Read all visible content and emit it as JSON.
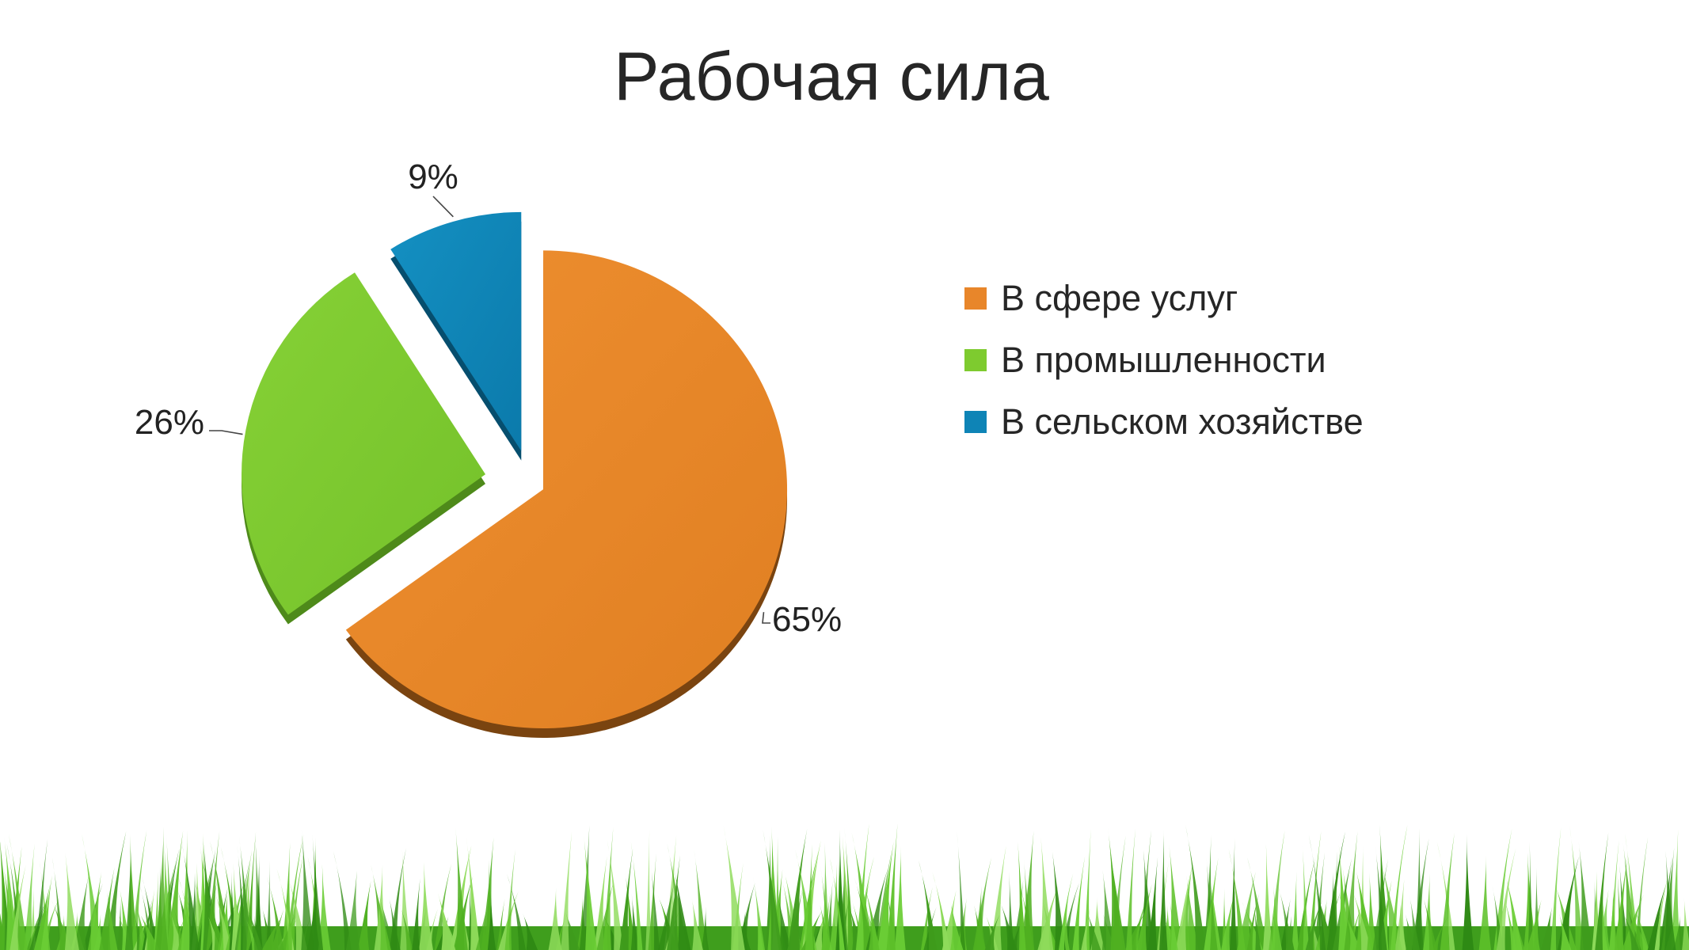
{
  "title": "Рабочая сила",
  "chart_data": {
    "type": "pie",
    "title": "Рабочая сила",
    "categories": [
      "В сфере услуг",
      "В промышленности",
      "В сельском хозяйстве"
    ],
    "values": [
      65,
      26,
      9
    ],
    "labels": [
      "65%",
      "26%",
      "9%"
    ],
    "colors": [
      "#E8862A",
      "#7ECB2F",
      "#0E84B6"
    ],
    "legend_position": "right"
  }
}
